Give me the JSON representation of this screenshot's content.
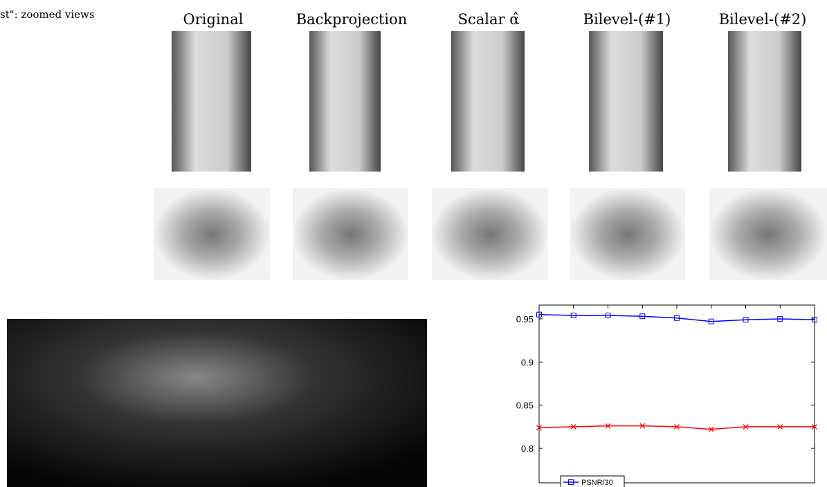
{
  "caption_fragment": "st\": zoomed views",
  "column_titles": [
    "Original",
    "Backprojection",
    "Scalar α̂",
    "Bilevel-(#1)",
    "Bilevel-(#2)"
  ],
  "chart_data": {
    "type": "line",
    "categories": [
      null,
      null,
      null,
      null,
      null,
      null,
      null,
      null,
      null
    ],
    "series": [
      {
        "name": "PSNR/30",
        "color": "#0000ff",
        "marker": "square",
        "values": [
          0.955,
          0.954,
          0.954,
          0.953,
          0.951,
          0.947,
          0.949,
          0.95,
          0.949
        ]
      },
      {
        "color": "#ff0000",
        "marker": "x",
        "values": [
          0.824,
          0.825,
          0.826,
          0.826,
          0.825,
          0.822,
          0.825,
          0.825,
          0.825
        ]
      }
    ],
    "ylim": [
      0.76,
      0.966
    ],
    "yticks": [
      0.8,
      0.85,
      0.9,
      0.95
    ],
    "legend": "lower left"
  }
}
